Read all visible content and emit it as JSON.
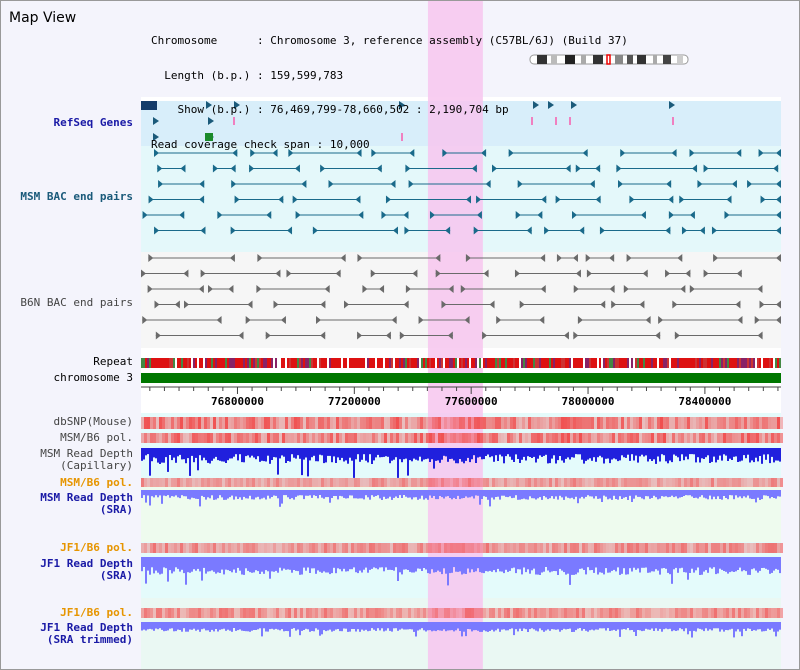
{
  "page": {
    "title": "Map View"
  },
  "info": {
    "chromosome_key": "Chromosome",
    "chromosome_val": "Chromosome 3, reference assembly (C57BL/6J) (Build 37)",
    "length_key": "Length (b.p.)",
    "length_val": "159,599,783",
    "show_key": "Show (b.p.)",
    "show_val": "76,469,799-78,660,502 : 2,190,704 bp",
    "span_key": "Read coverage check span",
    "span_val": "10,000"
  },
  "tracks": {
    "refseq": "RefSeq Genes",
    "msm_bac": "MSM BAC end pairs",
    "b6n_bac": "B6N BAC end pairs",
    "repeat": "Repeat",
    "chromosome": "chromosome 3",
    "dbsnp": "dbSNP(Mouse)",
    "msm_b6_pol_1": "MSM/B6 pol.",
    "msm_depth_cap_1": "MSM Read Depth",
    "msm_depth_cap_2": "(Capillary)",
    "msm_b6_pol_2": "MSM/B6 pol.",
    "msm_depth_sra_1": "MSM Read Depth",
    "msm_depth_sra_2": "(SRA)",
    "jf1_b6_pol_1": "JF1/B6 pol.",
    "jf1_depth_sra_1": "JF1 Read Depth",
    "jf1_depth_sra_2": "(SRA)",
    "jf1_b6_pol_2": "JF1/B6 pol.",
    "jf1_depth_trim_1": "JF1 Read Depth",
    "jf1_depth_trim_2": "(SRA trimmed)"
  },
  "axis": {
    "ticks": [
      "76800000",
      "77200000",
      "77600000",
      "78000000",
      "78400000"
    ],
    "tick_values": [
      76800000,
      77200000,
      77600000,
      78000000,
      78400000
    ],
    "range": [
      76469799,
      78660502
    ]
  },
  "highlight": {
    "start": 77452000,
    "end": 77640000
  },
  "colors": {
    "refseq_band": "#d8eefa",
    "msm_band": "#e4f8fa",
    "b6n_band": "#f6f6f6",
    "data_band_cyan": "#e4fbfb",
    "data_band_green": "#eefbee",
    "highlight": "#f7c6ee",
    "chromosome_bar": "#007700",
    "depth_dark": "#2020dd",
    "depth_light": "#7a7aff",
    "pol": "#f05050"
  }
}
